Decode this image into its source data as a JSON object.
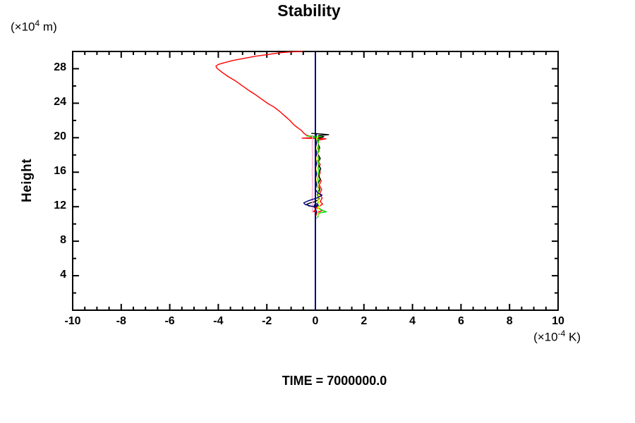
{
  "title": "Stability",
  "time_label": "TIME = 7000000.0",
  "y_axis": {
    "label": "Height",
    "unit_prefix": "(×10",
    "unit_exponent": "4",
    "unit_suffix": " m)"
  },
  "x_axis": {
    "unit_prefix": "(×10",
    "unit_exponent": "-4",
    "unit_suffix": " K)"
  },
  "colors": {
    "axis": "#000000",
    "zero_line": "#000080",
    "background": "#ffffff"
  },
  "chart_data": {
    "type": "line",
    "title": "Stability",
    "xlabel": "(×10^-4 K)",
    "ylabel": "Height (×10^4 m)",
    "xlim": [
      -10,
      10
    ],
    "ylim": [
      0,
      30
    ],
    "x_major_ticks": [
      -10,
      -8,
      -6,
      -4,
      -2,
      0,
      2,
      4,
      6,
      8,
      10
    ],
    "x_minor_step": 0.5,
    "y_major_ticks": [
      4,
      8,
      12,
      16,
      20,
      24,
      28
    ],
    "y_minor_step": 2,
    "grid": false,
    "legend": "none",
    "annotation": "TIME = 7000000.0",
    "zero_line": {
      "x": 0,
      "color": "#000080"
    },
    "series": [
      {
        "name": "red",
        "color": "#ff0000",
        "points": [
          [
            -0.55,
            30
          ],
          [
            -1.0,
            29.95
          ],
          [
            -1.45,
            29.85
          ],
          [
            -1.95,
            29.65
          ],
          [
            -2.45,
            29.45
          ],
          [
            -2.95,
            29.2
          ],
          [
            -3.4,
            28.95
          ],
          [
            -3.75,
            28.7
          ],
          [
            -4.0,
            28.5
          ],
          [
            -4.1,
            28.3
          ],
          [
            -4.05,
            28.05
          ],
          [
            -3.85,
            27.6
          ],
          [
            -3.6,
            27.1
          ],
          [
            -3.3,
            26.6
          ],
          [
            -3.0,
            26.0
          ],
          [
            -2.75,
            25.5
          ],
          [
            -2.5,
            25.05
          ],
          [
            -2.2,
            24.45
          ],
          [
            -1.95,
            23.95
          ],
          [
            -1.7,
            23.55
          ],
          [
            -1.45,
            23.0
          ],
          [
            -1.25,
            22.5
          ],
          [
            -1.05,
            22.0
          ],
          [
            -0.9,
            21.55
          ],
          [
            -0.75,
            21.2
          ],
          [
            -0.6,
            20.9
          ],
          [
            -0.5,
            20.6
          ],
          [
            -0.4,
            20.35
          ],
          [
            -0.22,
            20.15
          ],
          [
            0.3,
            20.05
          ],
          [
            -0.55,
            19.95
          ],
          [
            0.44,
            19.88
          ],
          [
            0.08,
            19.7
          ],
          [
            0.12,
            19.3
          ],
          [
            0.07,
            18.9
          ],
          [
            0.16,
            18.5
          ],
          [
            0.09,
            18.1
          ],
          [
            0.18,
            17.7
          ],
          [
            0.1,
            17.3
          ],
          [
            0.2,
            16.9
          ],
          [
            0.12,
            16.5
          ],
          [
            0.2,
            16.0
          ],
          [
            0.14,
            15.5
          ],
          [
            0.24,
            15.0
          ],
          [
            0.16,
            14.5
          ],
          [
            0.26,
            14.0
          ],
          [
            0.18,
            13.5
          ],
          [
            0.28,
            13.0
          ],
          [
            0.2,
            12.6
          ],
          [
            0.3,
            12.3
          ],
          [
            0.15,
            12.05
          ],
          [
            -0.05,
            11.9
          ],
          [
            0.2,
            11.75
          ],
          [
            0.27,
            11.55
          ],
          [
            0.1,
            11.35
          ],
          [
            -0.08,
            11.45
          ],
          [
            0.0,
            11.62
          ],
          [
            0.06,
            11.3
          ],
          [
            0.02,
            10.95
          ]
        ]
      },
      {
        "name": "black",
        "color": "#000000",
        "points": [
          [
            -0.15,
            20.5
          ],
          [
            0.3,
            20.42
          ],
          [
            0.55,
            20.35
          ],
          [
            0.1,
            20.25
          ],
          [
            0.35,
            20.1
          ],
          [
            0.15,
            19.95
          ],
          [
            0.1,
            19.4
          ],
          [
            0.18,
            18.8
          ],
          [
            0.08,
            18.2
          ],
          [
            0.2,
            17.6
          ],
          [
            0.1,
            17.0
          ],
          [
            0.22,
            16.4
          ],
          [
            0.12,
            15.8
          ],
          [
            0.2,
            15.2
          ],
          [
            0.1,
            14.6
          ],
          [
            0.18,
            14.0
          ],
          [
            0.08,
            13.4
          ],
          [
            0.15,
            12.9
          ],
          [
            0.0,
            12.6
          ],
          [
            -0.2,
            12.45
          ],
          [
            -0.35,
            12.3
          ],
          [
            -0.28,
            12.1
          ],
          [
            -0.05,
            12.0
          ],
          [
            0.12,
            12.1
          ],
          [
            0.08,
            12.3
          ],
          [
            0.02,
            11.95
          ]
        ]
      },
      {
        "name": "green",
        "color": "#00dd00",
        "points": [
          [
            -0.35,
            20.2
          ],
          [
            0.25,
            20.15
          ],
          [
            -0.1,
            20.05
          ],
          [
            0.15,
            19.8
          ],
          [
            0.1,
            19.2
          ],
          [
            0.15,
            18.6
          ],
          [
            0.08,
            18.0
          ],
          [
            0.15,
            17.4
          ],
          [
            0.1,
            16.8
          ],
          [
            0.15,
            16.2
          ],
          [
            0.1,
            15.6
          ],
          [
            0.12,
            15.0
          ],
          [
            0.08,
            14.4
          ],
          [
            0.12,
            13.8
          ],
          [
            0.1,
            13.2
          ],
          [
            0.12,
            12.6
          ],
          [
            0.08,
            12.2
          ],
          [
            0.15,
            11.8
          ],
          [
            0.32,
            11.55
          ],
          [
            0.45,
            11.4
          ],
          [
            0.2,
            11.3
          ],
          [
            0.1,
            11.1
          ],
          [
            0.12,
            10.9
          ],
          [
            0.08,
            10.75
          ]
        ]
      },
      {
        "name": "yellow",
        "color": "#ffff00",
        "points": [
          [
            0.1,
            20.3
          ],
          [
            0.05,
            19.8
          ],
          [
            0.1,
            19.2
          ],
          [
            0.06,
            18.6
          ],
          [
            0.1,
            18.0
          ],
          [
            0.05,
            17.4
          ],
          [
            0.1,
            16.8
          ],
          [
            0.06,
            16.2
          ],
          [
            0.1,
            15.6
          ],
          [
            0.05,
            15.0
          ],
          [
            0.12,
            14.4
          ],
          [
            0.08,
            13.8
          ],
          [
            0.16,
            13.3
          ],
          [
            0.1,
            12.8
          ],
          [
            0.18,
            12.3
          ],
          [
            0.12,
            11.8
          ],
          [
            0.08,
            11.4
          ],
          [
            0.1,
            11.0
          ]
        ]
      },
      {
        "name": "pink",
        "color": "#ffaacc",
        "points": [
          [
            -0.12,
            20.3
          ],
          [
            -0.13,
            19.0
          ],
          [
            -0.12,
            17.5
          ],
          [
            -0.13,
            16.0
          ],
          [
            -0.12,
            14.5
          ],
          [
            -0.13,
            13.0
          ],
          [
            -0.12,
            12.0
          ],
          [
            -0.13,
            11.35
          ]
        ]
      },
      {
        "name": "navy",
        "color": "#000080",
        "points": [
          [
            0.05,
            20.4
          ],
          [
            0.0,
            20.0
          ],
          [
            0.05,
            19.4
          ],
          [
            0.0,
            18.8
          ],
          [
            0.06,
            18.2
          ],
          [
            0.0,
            17.6
          ],
          [
            0.05,
            17.0
          ],
          [
            0.0,
            16.4
          ],
          [
            0.05,
            15.8
          ],
          [
            0.0,
            15.2
          ],
          [
            0.05,
            14.6
          ],
          [
            0.0,
            14.0
          ],
          [
            0.1,
            13.6
          ],
          [
            0.28,
            13.35
          ],
          [
            0.1,
            13.05
          ],
          [
            -0.12,
            12.85
          ],
          [
            -0.32,
            12.65
          ],
          [
            -0.48,
            12.45
          ],
          [
            -0.42,
            12.25
          ],
          [
            -0.2,
            12.08
          ],
          [
            0.0,
            12.0
          ],
          [
            0.12,
            12.18
          ],
          [
            0.05,
            12.35
          ],
          [
            -0.05,
            12.2
          ],
          [
            0.0,
            11.8
          ],
          [
            0.05,
            11.4
          ],
          [
            0.0,
            11.05
          ],
          [
            0.02,
            10.6
          ]
        ]
      }
    ]
  }
}
